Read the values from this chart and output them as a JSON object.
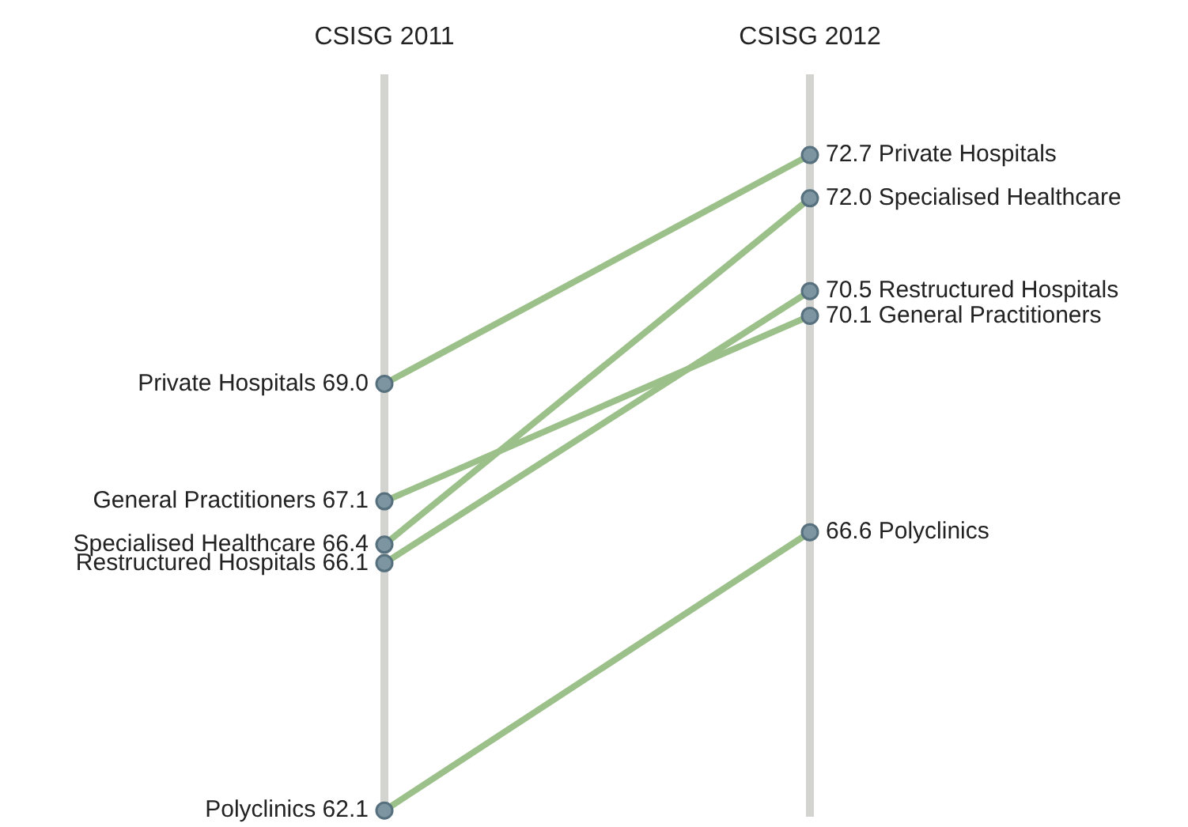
{
  "chart_data": {
    "type": "line",
    "categories": [
      "CSISG 2011",
      "CSISG 2012"
    ],
    "grid": "x",
    "legend": false,
    "marker": "circle",
    "data_labels": true,
    "series": [
      {
        "name": "Private Hospitals",
        "color": "#9cc089",
        "values": [
          69.0,
          72.7
        ],
        "value_labels": [
          "69.0",
          "72.7"
        ]
      },
      {
        "name": "General Practitioners",
        "color": "#9cc089",
        "values": [
          67.1,
          70.1
        ],
        "value_labels": [
          "67.1",
          "70.1"
        ]
      },
      {
        "name": "Specialised Healthcare",
        "color": "#9cc089",
        "values": [
          66.4,
          72.0
        ],
        "value_labels": [
          "66.4",
          "72.0"
        ]
      },
      {
        "name": "Restructured Hospitals",
        "color": "#9cc089",
        "values": [
          66.1,
          70.5
        ],
        "value_labels": [
          "66.1",
          "70.5"
        ]
      },
      {
        "name": "Polyclinics",
        "color": "#9cc089",
        "values": [
          62.1,
          66.6
        ],
        "value_labels": [
          "62.1",
          "66.6"
        ]
      }
    ]
  }
}
